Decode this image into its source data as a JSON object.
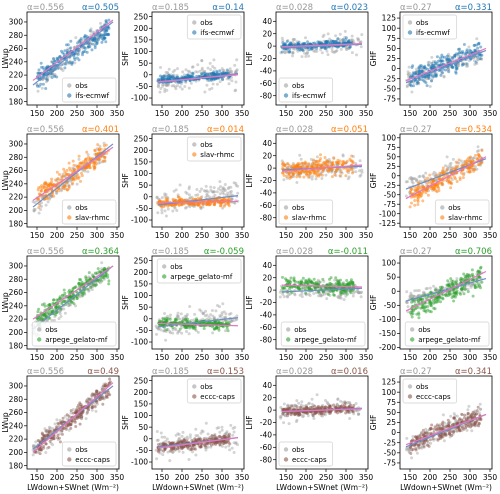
{
  "figure": {
    "xlabel": "LWdown+SWnet (Wm⁻²)",
    "colors": {
      "obs": "#a0a0a0",
      "ifs-ecmwf": "#1f77b4",
      "slav-rhmc": "#ff7f0e",
      "arpege_gelato-mf": "#2ca02c",
      "eccc-caps": "#8c564b",
      "obs_fit": "#6c8ec8",
      "model_fit": "#e377c2"
    }
  },
  "chart_data": [
    {
      "type": "scatter",
      "row": 0,
      "col": 0,
      "ylabel": "LWup",
      "xlim": [
        125,
        355
      ],
      "ylim": [
        175,
        315
      ],
      "xticks": [
        150,
        200,
        250,
        300,
        350
      ],
      "yticks": [
        180,
        200,
        220,
        240,
        260,
        280,
        300
      ],
      "alpha_obs": "α=0.556",
      "alpha_model": "α=0.505",
      "series": [
        {
          "name": "obs"
        },
        {
          "name": "ifs-ecmwf"
        }
      ],
      "legend": "bottom-right",
      "obs_fit": [
        [
          140,
          205
        ],
        [
          340,
          300
        ]
      ],
      "model_fit": [
        [
          140,
          212
        ],
        [
          340,
          303
        ]
      ],
      "obs_cloud": {
        "x0": 140,
        "x1": 320,
        "yc0": 205,
        "yc1": 290,
        "spread": 10
      },
      "model_cloud": {
        "x0": 150,
        "x1": 330,
        "yc0": 215,
        "yc1": 290,
        "spread": 11
      }
    },
    {
      "type": "scatter",
      "row": 0,
      "col": 1,
      "ylabel": "SHF",
      "xlim": [
        125,
        355
      ],
      "ylim": [
        -130,
        270
      ],
      "xticks": [
        150,
        200,
        250,
        300,
        350
      ],
      "yticks": [
        -100,
        -50,
        0,
        50,
        100,
        150,
        200,
        250
      ],
      "alpha_obs": "α=0.185",
      "alpha_model": "α=0.14",
      "series": [
        {
          "name": "obs"
        },
        {
          "name": "ifs-ecmwf"
        }
      ],
      "legend": "top-right",
      "obs_fit": [
        [
          140,
          -35
        ],
        [
          340,
          5
        ]
      ],
      "model_fit": [
        [
          140,
          -30
        ],
        [
          340,
          0
        ]
      ],
      "obs_cloud": {
        "x0": 135,
        "x1": 340,
        "yc0": -30,
        "yc1": 10,
        "spread": 40
      },
      "model_cloud": {
        "x0": 140,
        "x1": 320,
        "yc0": -25,
        "yc1": 0,
        "spread": 12
      }
    },
    {
      "type": "scatter",
      "row": 0,
      "col": 2,
      "ylabel": "LHF",
      "xlim": [
        125,
        355
      ],
      "ylim": [
        -95,
        55
      ],
      "xticks": [
        150,
        200,
        250,
        300,
        350
      ],
      "yticks": [
        -80,
        -60,
        -40,
        -20,
        0,
        20,
        40
      ],
      "alpha_obs": "α=0.028",
      "alpha_model": "α=0.023",
      "series": [
        {
          "name": "obs"
        },
        {
          "name": "ifs-ecmwf"
        }
      ],
      "legend": "bottom-left",
      "obs_fit": [
        [
          140,
          -3
        ],
        [
          340,
          3
        ]
      ],
      "model_fit": [
        [
          140,
          -1
        ],
        [
          340,
          4
        ]
      ],
      "obs_cloud": {
        "x0": 135,
        "x1": 340,
        "yc0": -3,
        "yc1": 3,
        "spread": 12
      },
      "model_cloud": {
        "x0": 140,
        "x1": 320,
        "yc0": -2,
        "yc1": 5,
        "spread": 5
      }
    },
    {
      "type": "scatter",
      "row": 0,
      "col": 3,
      "ylabel": "GHF",
      "xlim": [
        125,
        355
      ],
      "ylim": [
        -90,
        140
      ],
      "xticks": [
        150,
        200,
        250,
        300,
        350
      ],
      "yticks": [
        -75,
        -50,
        -25,
        0,
        25,
        50,
        75,
        100,
        125
      ],
      "alpha_obs": "α=0.27",
      "alpha_model": "α=0.331",
      "series": [
        {
          "name": "obs"
        },
        {
          "name": "ifs-ecmwf"
        }
      ],
      "legend": "top-left",
      "obs_fit": [
        [
          140,
          -35
        ],
        [
          340,
          45
        ]
      ],
      "model_fit": [
        [
          140,
          -30
        ],
        [
          340,
          50
        ]
      ],
      "obs_cloud": {
        "x0": 140,
        "x1": 330,
        "yc0": -35,
        "yc1": 45,
        "spread": 20
      },
      "model_cloud": {
        "x0": 150,
        "x1": 330,
        "yc0": -25,
        "yc1": 45,
        "spread": 18
      }
    },
    {
      "type": "scatter",
      "row": 1,
      "col": 0,
      "ylabel": "LWup",
      "xlim": [
        125,
        355
      ],
      "ylim": [
        175,
        315
      ],
      "xticks": [
        150,
        200,
        250,
        300,
        350
      ],
      "yticks": [
        180,
        200,
        220,
        240,
        260,
        280,
        300
      ],
      "alpha_obs": "α=0.556",
      "alpha_model": "α=0.401",
      "series": [
        {
          "name": "obs"
        },
        {
          "name": "slav-rhmc"
        }
      ],
      "legend": "bottom-right",
      "obs_fit": [
        [
          140,
          205
        ],
        [
          340,
          300
        ]
      ],
      "model_fit": [
        [
          140,
          215
        ],
        [
          340,
          295
        ]
      ],
      "obs_cloud": {
        "x0": 140,
        "x1": 320,
        "yc0": 205,
        "yc1": 290,
        "spread": 10
      },
      "model_cloud": {
        "x0": 150,
        "x1": 330,
        "yc0": 220,
        "yc1": 290,
        "spread": 12
      }
    },
    {
      "type": "scatter",
      "row": 1,
      "col": 1,
      "ylabel": "SHF",
      "xlim": [
        125,
        355
      ],
      "ylim": [
        -130,
        270
      ],
      "xticks": [
        150,
        200,
        250,
        300,
        350
      ],
      "yticks": [
        -100,
        -50,
        0,
        50,
        100,
        150,
        200,
        250
      ],
      "alpha_obs": "α=0.185",
      "alpha_model": "α=0.014",
      "series": [
        {
          "name": "obs"
        },
        {
          "name": "slav-rhmc"
        }
      ],
      "legend": "top-right",
      "obs_fit": [
        [
          140,
          -35
        ],
        [
          340,
          5
        ]
      ],
      "model_fit": [
        [
          140,
          -25
        ],
        [
          340,
          -20
        ]
      ],
      "obs_cloud": {
        "x0": 135,
        "x1": 340,
        "yc0": -30,
        "yc1": 10,
        "spread": 40
      },
      "model_cloud": {
        "x0": 140,
        "x1": 320,
        "yc0": -25,
        "yc1": -20,
        "spread": 12
      }
    },
    {
      "type": "scatter",
      "row": 1,
      "col": 2,
      "ylabel": "LHF",
      "xlim": [
        125,
        355
      ],
      "ylim": [
        -95,
        55
      ],
      "xticks": [
        150,
        200,
        250,
        300,
        350
      ],
      "yticks": [
        -80,
        -60,
        -40,
        -20,
        0,
        20,
        40
      ],
      "alpha_obs": "α=0.028",
      "alpha_model": "α=0.051",
      "series": [
        {
          "name": "obs"
        },
        {
          "name": "slav-rhmc"
        }
      ],
      "legend": "bottom-left",
      "obs_fit": [
        [
          140,
          -3
        ],
        [
          340,
          3
        ]
      ],
      "model_fit": [
        [
          140,
          -5
        ],
        [
          340,
          5
        ]
      ],
      "obs_cloud": {
        "x0": 135,
        "x1": 340,
        "yc0": -3,
        "yc1": 3,
        "spread": 12
      },
      "model_cloud": {
        "x0": 140,
        "x1": 320,
        "yc0": -5,
        "yc1": 5,
        "spread": 10
      }
    },
    {
      "type": "scatter",
      "row": 1,
      "col": 3,
      "ylabel": "GHF",
      "xlim": [
        125,
        355
      ],
      "ylim": [
        -135,
        110
      ],
      "xticks": [
        150,
        200,
        250,
        300,
        350
      ],
      "yticks": [
        -125,
        -100,
        -75,
        -50,
        -25,
        0,
        25,
        50,
        75,
        100
      ],
      "alpha_obs": "α=0.27",
      "alpha_model": "α=0.534",
      "series": [
        {
          "name": "obs"
        },
        {
          "name": "slav-rhmc"
        }
      ],
      "legend": "bottom-right",
      "obs_fit": [
        [
          140,
          -35
        ],
        [
          340,
          45
        ]
      ],
      "model_fit": [
        [
          140,
          -60
        ],
        [
          340,
          50
        ]
      ],
      "obs_cloud": {
        "x0": 140,
        "x1": 330,
        "yc0": -35,
        "yc1": 45,
        "spread": 20
      },
      "model_cloud": {
        "x0": 150,
        "x1": 330,
        "yc0": -55,
        "yc1": 45,
        "spread": 20
      }
    },
    {
      "type": "scatter",
      "row": 2,
      "col": 0,
      "ylabel": "LWup",
      "xlim": [
        125,
        355
      ],
      "ylim": [
        175,
        315
      ],
      "xticks": [
        150,
        200,
        250,
        300,
        350
      ],
      "yticks": [
        180,
        200,
        220,
        240,
        260,
        280,
        300
      ],
      "alpha_obs": "α=0.556",
      "alpha_model": "α=0.364",
      "series": [
        {
          "name": "obs"
        },
        {
          "name": "arpege_gelato-mf"
        }
      ],
      "legend": "bottom-right",
      "obs_fit": [
        [
          140,
          205
        ],
        [
          340,
          300
        ]
      ],
      "model_fit": [
        [
          140,
          220
        ],
        [
          340,
          300
        ]
      ],
      "obs_cloud": {
        "x0": 140,
        "x1": 320,
        "yc0": 205,
        "yc1": 290,
        "spread": 10
      },
      "model_cloud": {
        "x0": 150,
        "x1": 330,
        "yc0": 222,
        "yc1": 292,
        "spread": 10
      }
    },
    {
      "type": "scatter",
      "row": 2,
      "col": 1,
      "ylabel": "SHF",
      "xlim": [
        125,
        355
      ],
      "ylim": [
        -130,
        270
      ],
      "xticks": [
        150,
        200,
        250,
        300,
        350
      ],
      "yticks": [
        -100,
        -50,
        0,
        50,
        100,
        150,
        200,
        250
      ],
      "alpha_obs": "α=0.185",
      "alpha_model": "α=-0.059",
      "series": [
        {
          "name": "obs"
        },
        {
          "name": "arpege_gelato-mf"
        }
      ],
      "legend": "top-right",
      "obs_fit": [
        [
          140,
          -35
        ],
        [
          340,
          5
        ]
      ],
      "model_fit": [
        [
          140,
          -20
        ],
        [
          340,
          -30
        ]
      ],
      "obs_cloud": {
        "x0": 135,
        "x1": 340,
        "yc0": -30,
        "yc1": 10,
        "spread": 40
      },
      "model_cloud": {
        "x0": 140,
        "x1": 320,
        "yc0": -18,
        "yc1": -28,
        "spread": 14
      }
    },
    {
      "type": "scatter",
      "row": 2,
      "col": 2,
      "ylabel": "LHF",
      "xlim": [
        125,
        355
      ],
      "ylim": [
        -95,
        55
      ],
      "xticks": [
        150,
        200,
        250,
        300,
        350
      ],
      "yticks": [
        -80,
        -60,
        -40,
        -20,
        0,
        20,
        40
      ],
      "alpha_obs": "α=0.028",
      "alpha_model": "α=-0.011",
      "series": [
        {
          "name": "obs"
        },
        {
          "name": "arpege_gelato-mf"
        }
      ],
      "legend": "bottom-right",
      "obs_fit": [
        [
          140,
          -3
        ],
        [
          340,
          3
        ]
      ],
      "model_fit": [
        [
          140,
          8
        ],
        [
          340,
          5
        ]
      ],
      "obs_cloud": {
        "x0": 135,
        "x1": 340,
        "yc0": -3,
        "yc1": 3,
        "spread": 12
      },
      "model_cloud": {
        "x0": 140,
        "x1": 320,
        "yc0": 8,
        "yc1": 5,
        "spread": 8
      }
    },
    {
      "type": "scatter",
      "row": 2,
      "col": 3,
      "ylabel": "GHF",
      "xlim": [
        125,
        355
      ],
      "ylim": [
        -205,
        125
      ],
      "xticks": [
        150,
        200,
        250,
        300,
        350
      ],
      "yticks": [
        -200,
        -150,
        -100,
        -50,
        0,
        50,
        100
      ],
      "alpha_obs": "α=0.27",
      "alpha_model": "α=0.706",
      "series": [
        {
          "name": "obs"
        },
        {
          "name": "arpege_gelato-mf"
        }
      ],
      "legend": "bottom-right",
      "obs_fit": [
        [
          140,
          -35
        ],
        [
          340,
          45
        ]
      ],
      "model_fit": [
        [
          140,
          -70
        ],
        [
          340,
          70
        ]
      ],
      "obs_cloud": {
        "x0": 140,
        "x1": 330,
        "yc0": -35,
        "yc1": 45,
        "spread": 20
      },
      "model_cloud": {
        "x0": 150,
        "x1": 330,
        "yc0": -70,
        "yc1": 60,
        "spread": 30
      }
    },
    {
      "type": "scatter",
      "row": 3,
      "col": 0,
      "ylabel": "LWup",
      "xlim": [
        125,
        355
      ],
      "ylim": [
        175,
        315
      ],
      "xticks": [
        150,
        200,
        250,
        300,
        350
      ],
      "yticks": [
        180,
        200,
        220,
        240,
        260,
        280,
        300
      ],
      "alpha_obs": "α=0.556",
      "alpha_model": "α=0.49",
      "series": [
        {
          "name": "obs"
        },
        {
          "name": "eccc-caps"
        }
      ],
      "legend": "bottom-right",
      "obs_fit": [
        [
          140,
          205
        ],
        [
          340,
          300
        ]
      ],
      "model_fit": [
        [
          140,
          200
        ],
        [
          340,
          305
        ]
      ],
      "obs_cloud": {
        "x0": 140,
        "x1": 320,
        "yc0": 205,
        "yc1": 290,
        "spread": 10
      },
      "model_cloud": {
        "x0": 145,
        "x1": 335,
        "yc0": 205,
        "yc1": 298,
        "spread": 10
      }
    },
    {
      "type": "scatter",
      "row": 3,
      "col": 1,
      "ylabel": "SHF",
      "xlim": [
        125,
        355
      ],
      "ylim": [
        -130,
        270
      ],
      "xticks": [
        150,
        200,
        250,
        300,
        350
      ],
      "yticks": [
        -100,
        -50,
        0,
        50,
        100,
        150,
        200,
        250
      ],
      "alpha_obs": "α=0.185",
      "alpha_model": "α=0.153",
      "series": [
        {
          "name": "obs"
        },
        {
          "name": "eccc-caps"
        }
      ],
      "legend": "top-right",
      "obs_fit": [
        [
          140,
          -35
        ],
        [
          340,
          5
        ]
      ],
      "model_fit": [
        [
          140,
          -40
        ],
        [
          340,
          5
        ]
      ],
      "obs_cloud": {
        "x0": 135,
        "x1": 340,
        "yc0": -30,
        "yc1": 10,
        "spread": 40
      },
      "model_cloud": {
        "x0": 140,
        "x1": 320,
        "yc0": -38,
        "yc1": 0,
        "spread": 15
      }
    },
    {
      "type": "scatter",
      "row": 3,
      "col": 2,
      "ylabel": "LHF",
      "xlim": [
        125,
        355
      ],
      "ylim": [
        -95,
        55
      ],
      "xticks": [
        150,
        200,
        250,
        300,
        350
      ],
      "yticks": [
        -80,
        -60,
        -40,
        -20,
        0,
        20,
        40
      ],
      "alpha_obs": "α=0.028",
      "alpha_model": "α=0.016",
      "series": [
        {
          "name": "obs"
        },
        {
          "name": "eccc-caps"
        }
      ],
      "legend": "bottom-left",
      "obs_fit": [
        [
          140,
          -3
        ],
        [
          340,
          3
        ]
      ],
      "model_fit": [
        [
          140,
          -2
        ],
        [
          340,
          2
        ]
      ],
      "obs_cloud": {
        "x0": 135,
        "x1": 340,
        "yc0": -3,
        "yc1": 3,
        "spread": 12
      },
      "model_cloud": {
        "x0": 140,
        "x1": 320,
        "yc0": -2,
        "yc1": 2,
        "spread": 5
      }
    },
    {
      "type": "scatter",
      "row": 3,
      "col": 3,
      "ylabel": "GHF",
      "xlim": [
        125,
        355
      ],
      "ylim": [
        -90,
        140
      ],
      "xticks": [
        150,
        200,
        250,
        300,
        350
      ],
      "yticks": [
        -75,
        -50,
        -25,
        0,
        25,
        50,
        75,
        100,
        125
      ],
      "alpha_obs": "α=0.27",
      "alpha_model": "α=0.341",
      "series": [
        {
          "name": "obs"
        },
        {
          "name": "eccc-caps"
        }
      ],
      "legend": "top-left",
      "obs_fit": [
        [
          140,
          -35
        ],
        [
          340,
          45
        ]
      ],
      "model_fit": [
        [
          140,
          -30
        ],
        [
          340,
          45
        ]
      ],
      "obs_cloud": {
        "x0": 140,
        "x1": 330,
        "yc0": -35,
        "yc1": 45,
        "spread": 20
      },
      "model_cloud": {
        "x0": 150,
        "x1": 330,
        "yc0": -28,
        "yc1": 42,
        "spread": 15
      }
    }
  ]
}
